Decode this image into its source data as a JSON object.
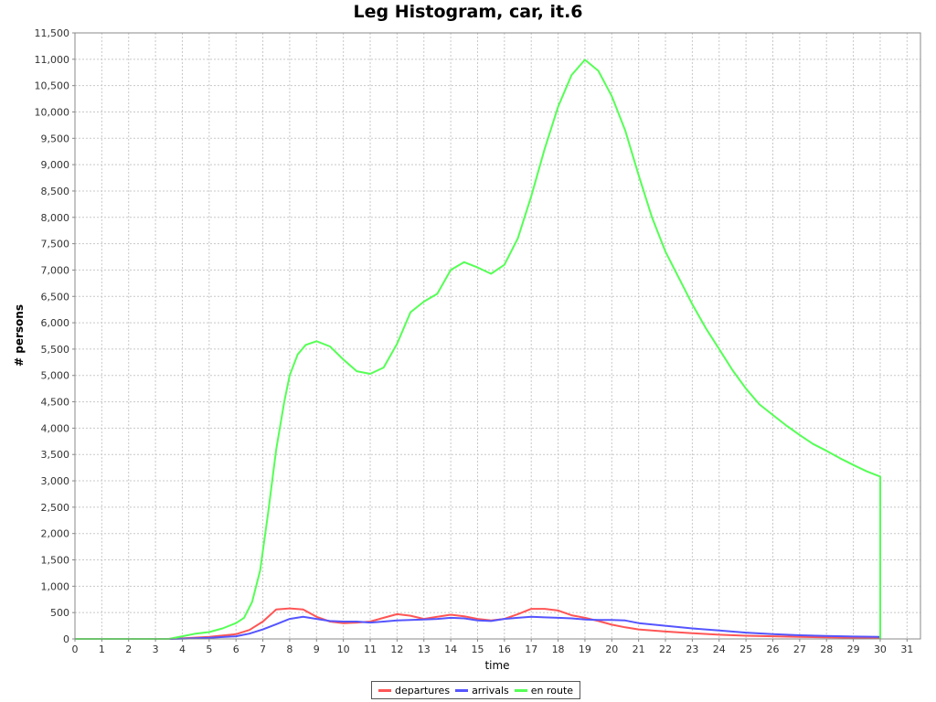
{
  "chart_data": {
    "type": "line",
    "title": "Leg Histogram, car, it.6",
    "xlabel": "time",
    "ylabel": "# persons",
    "xlim": [
      0,
      31.5
    ],
    "ylim": [
      0,
      11500
    ],
    "x_ticks": [
      0,
      1,
      2,
      3,
      4,
      5,
      6,
      7,
      8,
      9,
      10,
      11,
      12,
      13,
      14,
      15,
      16,
      17,
      18,
      19,
      20,
      21,
      22,
      23,
      24,
      25,
      26,
      27,
      28,
      29,
      30,
      31
    ],
    "y_ticks": [
      0,
      500,
      1000,
      1500,
      2000,
      2500,
      3000,
      3500,
      4000,
      4500,
      5000,
      5500,
      6000,
      6500,
      7000,
      7500,
      8000,
      8500,
      9000,
      9500,
      10000,
      10500,
      11000,
      11500
    ],
    "y_tick_labels": [
      "0",
      "500",
      "1,000",
      "1,500",
      "2,000",
      "2,500",
      "3,000",
      "3,500",
      "4,000",
      "4,500",
      "5,000",
      "5,500",
      "6,000",
      "6,500",
      "7,000",
      "7,500",
      "8,000",
      "8,500",
      "9,000",
      "9,500",
      "10,000",
      "10,500",
      "11,000",
      "11,500"
    ],
    "grid": true,
    "legend_position": "bottom-center",
    "series": [
      {
        "name": "departures",
        "color": "#ff5555",
        "points": [
          [
            0,
            0
          ],
          [
            3.5,
            0
          ],
          [
            4,
            10
          ],
          [
            5,
            40
          ],
          [
            6,
            90
          ],
          [
            6.5,
            170
          ],
          [
            7,
            330
          ],
          [
            7.5,
            560
          ],
          [
            8,
            580
          ],
          [
            8.5,
            560
          ],
          [
            9,
            420
          ],
          [
            9.5,
            330
          ],
          [
            10,
            300
          ],
          [
            10.5,
            310
          ],
          [
            11,
            330
          ],
          [
            11.5,
            400
          ],
          [
            12,
            470
          ],
          [
            12.5,
            440
          ],
          [
            13,
            380
          ],
          [
            13.5,
            420
          ],
          [
            14,
            460
          ],
          [
            14.5,
            430
          ],
          [
            15,
            380
          ],
          [
            15.5,
            350
          ],
          [
            16,
            380
          ],
          [
            16.5,
            470
          ],
          [
            17,
            570
          ],
          [
            17.5,
            570
          ],
          [
            18,
            540
          ],
          [
            18.5,
            450
          ],
          [
            19,
            400
          ],
          [
            19.5,
            340
          ],
          [
            20,
            270
          ],
          [
            20.5,
            220
          ],
          [
            21,
            180
          ],
          [
            22,
            140
          ],
          [
            23,
            110
          ],
          [
            24,
            80
          ],
          [
            25,
            60
          ],
          [
            26,
            50
          ],
          [
            27,
            40
          ],
          [
            28,
            30
          ],
          [
            29,
            25
          ],
          [
            30,
            20
          ]
        ]
      },
      {
        "name": "arrivals",
        "color": "#5555ff",
        "points": [
          [
            0,
            0
          ],
          [
            3.5,
            0
          ],
          [
            4,
            5
          ],
          [
            5,
            20
          ],
          [
            6,
            50
          ],
          [
            6.5,
            100
          ],
          [
            7,
            180
          ],
          [
            7.5,
            280
          ],
          [
            8,
            380
          ],
          [
            8.5,
            420
          ],
          [
            9,
            380
          ],
          [
            9.5,
            340
          ],
          [
            10,
            330
          ],
          [
            10.5,
            330
          ],
          [
            11,
            310
          ],
          [
            11.5,
            330
          ],
          [
            12,
            350
          ],
          [
            12.5,
            360
          ],
          [
            13,
            370
          ],
          [
            13.5,
            380
          ],
          [
            14,
            400
          ],
          [
            14.5,
            390
          ],
          [
            15,
            350
          ],
          [
            15.5,
            340
          ],
          [
            16,
            380
          ],
          [
            16.5,
            400
          ],
          [
            17,
            420
          ],
          [
            17.5,
            410
          ],
          [
            18,
            400
          ],
          [
            18.5,
            390
          ],
          [
            19,
            370
          ],
          [
            19.5,
            360
          ],
          [
            20,
            360
          ],
          [
            20.5,
            350
          ],
          [
            21,
            300
          ],
          [
            22,
            250
          ],
          [
            23,
            200
          ],
          [
            24,
            160
          ],
          [
            25,
            120
          ],
          [
            26,
            90
          ],
          [
            27,
            70
          ],
          [
            28,
            55
          ],
          [
            29,
            45
          ],
          [
            30,
            40
          ]
        ]
      },
      {
        "name": "en route",
        "color": "#55ff55",
        "points": [
          [
            0,
            0
          ],
          [
            3.5,
            0
          ],
          [
            4,
            50
          ],
          [
            4.5,
            100
          ],
          [
            5,
            130
          ],
          [
            5.5,
            200
          ],
          [
            6,
            300
          ],
          [
            6.3,
            400
          ],
          [
            6.6,
            700
          ],
          [
            6.9,
            1300
          ],
          [
            7.2,
            2400
          ],
          [
            7.5,
            3600
          ],
          [
            7.8,
            4500
          ],
          [
            8,
            5000
          ],
          [
            8.3,
            5400
          ],
          [
            8.6,
            5580
          ],
          [
            9,
            5650
          ],
          [
            9.5,
            5550
          ],
          [
            10,
            5300
          ],
          [
            10.5,
            5080
          ],
          [
            11,
            5030
          ],
          [
            11.5,
            5150
          ],
          [
            12,
            5600
          ],
          [
            12.5,
            6200
          ],
          [
            13,
            6400
          ],
          [
            13.5,
            6550
          ],
          [
            14,
            7000
          ],
          [
            14.5,
            7150
          ],
          [
            15,
            7050
          ],
          [
            15.5,
            6930
          ],
          [
            16,
            7100
          ],
          [
            16.5,
            7600
          ],
          [
            17,
            8400
          ],
          [
            17.5,
            9300
          ],
          [
            18,
            10100
          ],
          [
            18.5,
            10700
          ],
          [
            19,
            10990
          ],
          [
            19.5,
            10780
          ],
          [
            20,
            10300
          ],
          [
            20.5,
            9650
          ],
          [
            21,
            8800
          ],
          [
            21.5,
            8000
          ],
          [
            22,
            7350
          ],
          [
            22.5,
            6850
          ],
          [
            23,
            6350
          ],
          [
            23.5,
            5900
          ],
          [
            24,
            5500
          ],
          [
            24.5,
            5100
          ],
          [
            25,
            4750
          ],
          [
            25.5,
            4450
          ],
          [
            26,
            4250
          ],
          [
            26.5,
            4050
          ],
          [
            27,
            3870
          ],
          [
            27.5,
            3700
          ],
          [
            28,
            3570
          ],
          [
            28.5,
            3430
          ],
          [
            29,
            3300
          ],
          [
            29.5,
            3180
          ],
          [
            30,
            3080
          ],
          [
            30,
            0
          ]
        ]
      }
    ]
  }
}
